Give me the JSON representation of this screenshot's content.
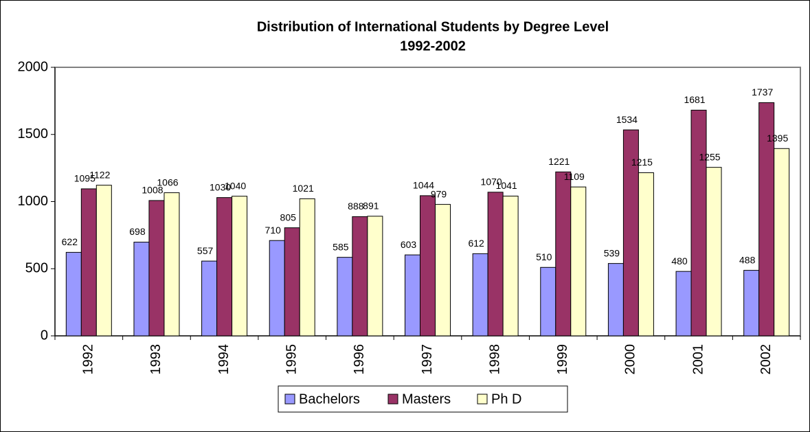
{
  "chart_data": {
    "type": "bar",
    "title": "Distribution of International Students by Degree Level",
    "subtitle": "1992-2002",
    "categories": [
      "1992",
      "1993",
      "1994",
      "1995",
      "1996",
      "1997",
      "1998",
      "1999",
      "2000",
      "2001",
      "2002"
    ],
    "series": [
      {
        "name": "Bachelors",
        "color": "#9999ff",
        "values": [
          622,
          698,
          557,
          710,
          585,
          603,
          612,
          510,
          539,
          480,
          488
        ]
      },
      {
        "name": "Masters",
        "color": "#993366",
        "values": [
          1095,
          1008,
          1030,
          805,
          888,
          1044,
          1070,
          1221,
          1534,
          1681,
          1737
        ]
      },
      {
        "name": "Ph D",
        "color": "#ffffcc",
        "values": [
          1122,
          1066,
          1040,
          1021,
          891,
          979,
          1041,
          1109,
          1215,
          1255,
          1395
        ]
      }
    ],
    "ylim": [
      0,
      2000
    ],
    "yticks": [
      0,
      500,
      1000,
      1500,
      2000
    ],
    "grid": false,
    "legend": "bottom"
  }
}
